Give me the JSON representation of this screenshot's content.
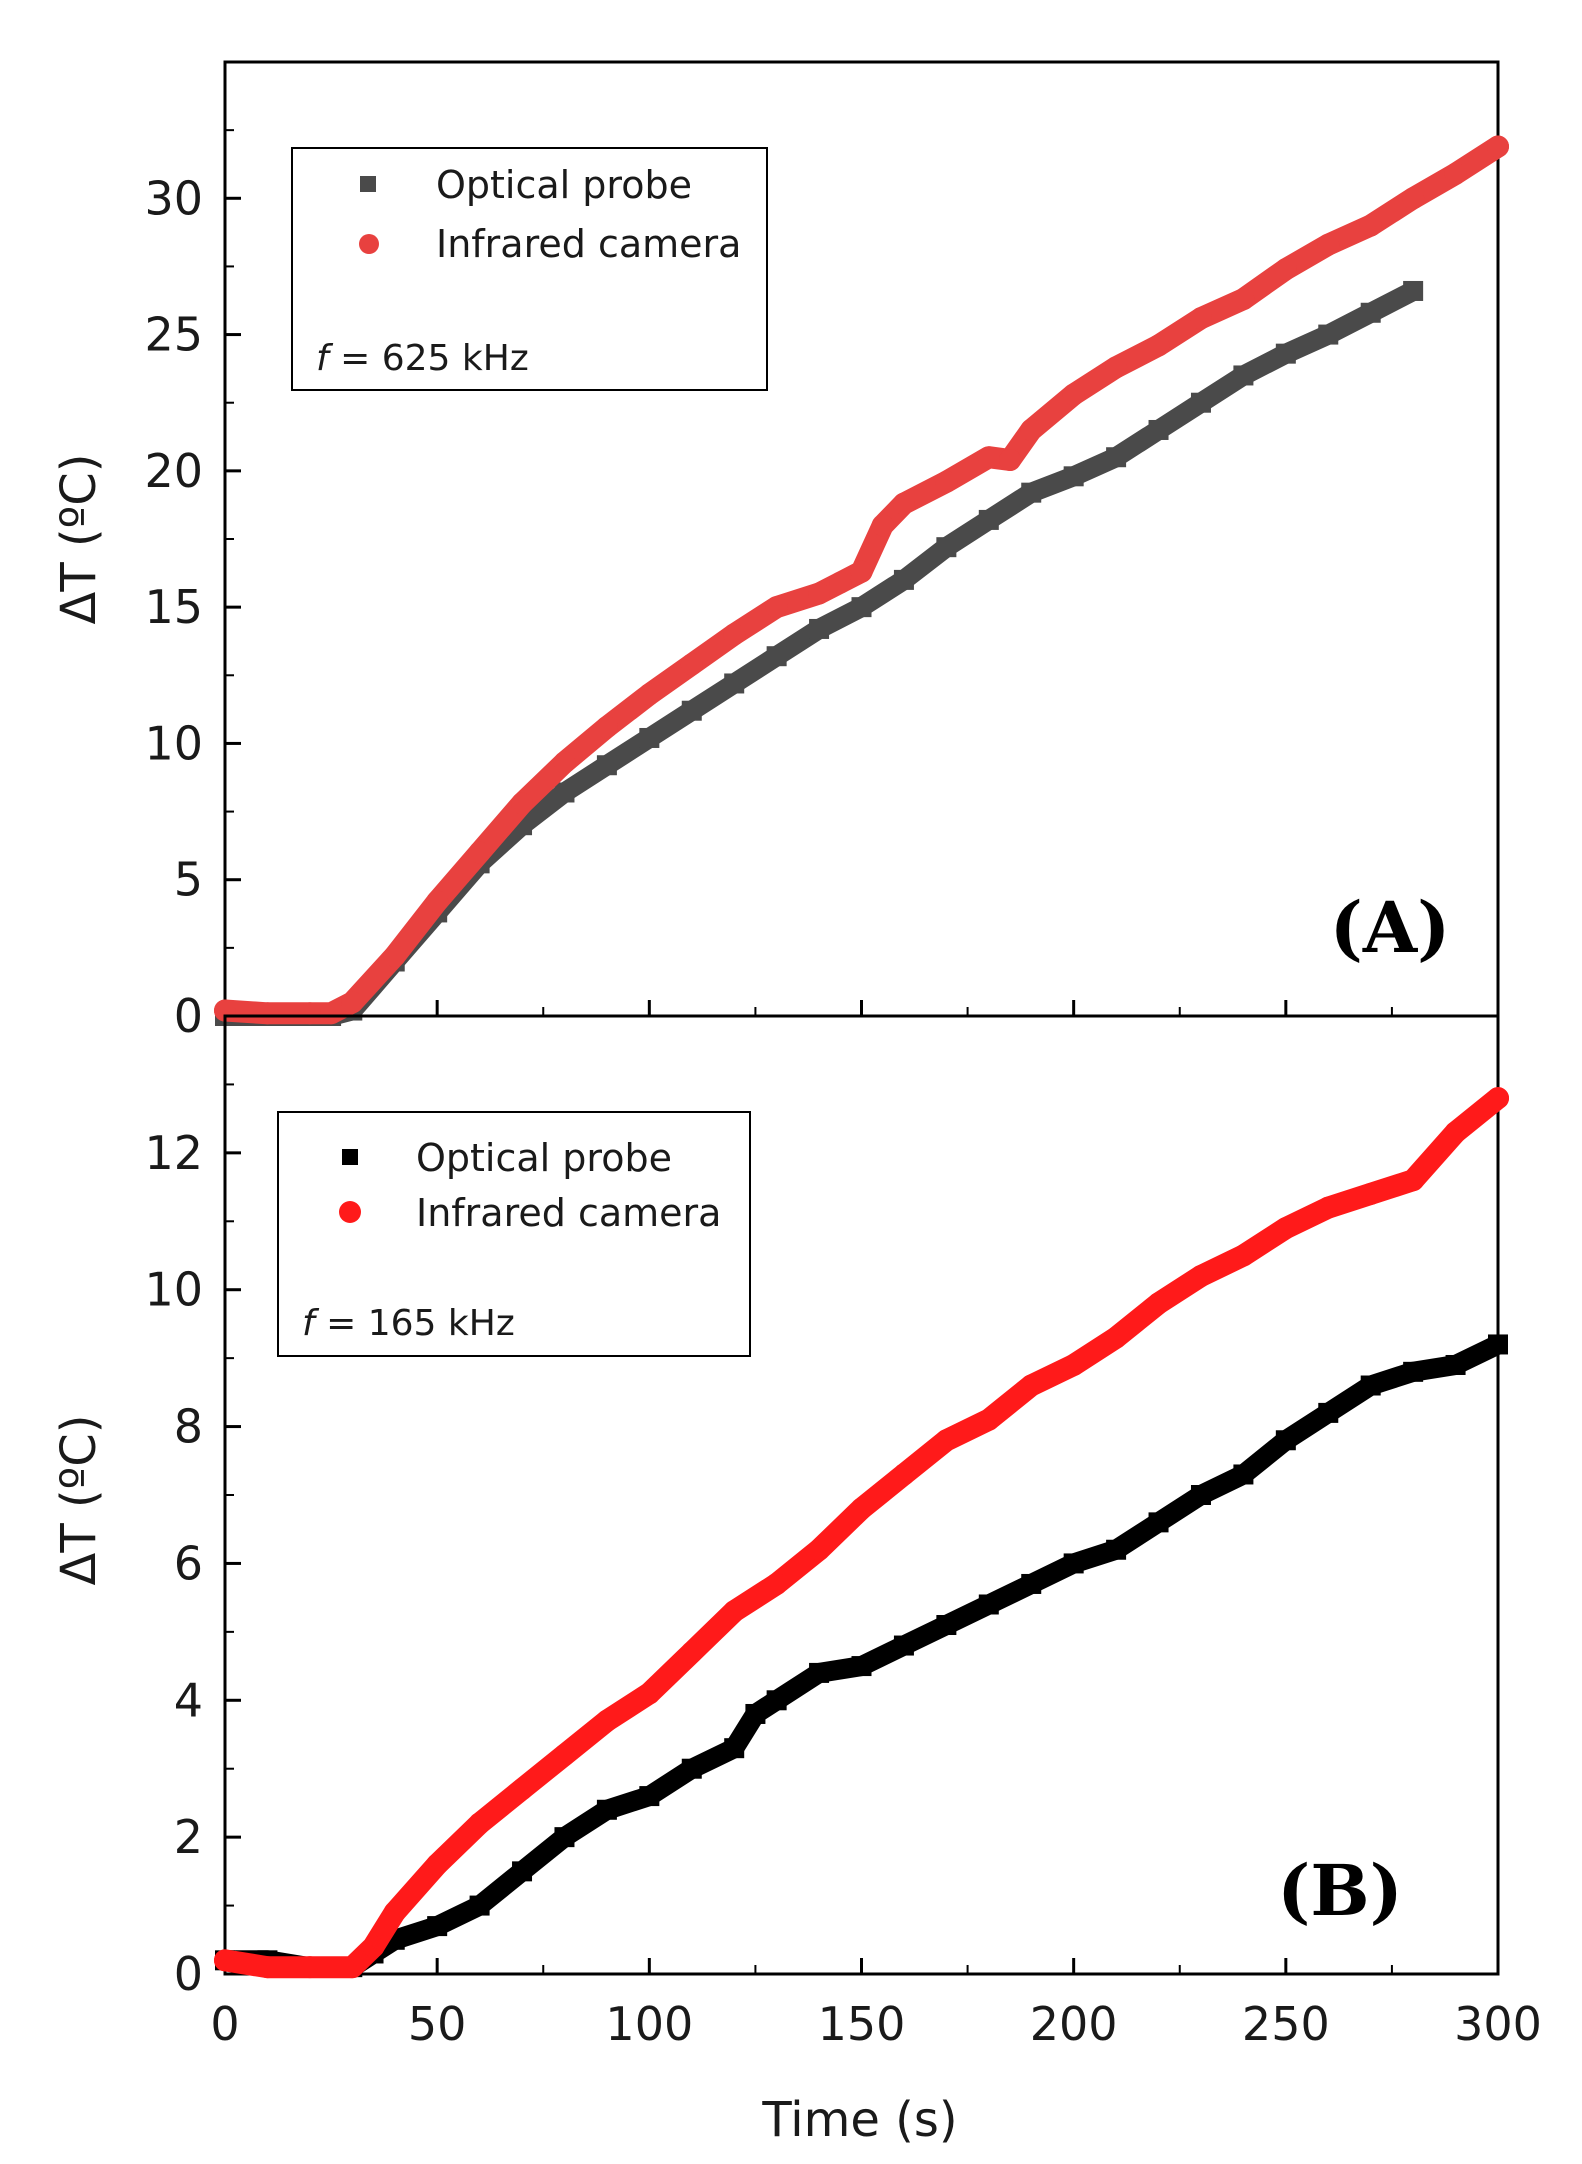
{
  "chart_data": [
    {
      "type": "scatter",
      "panel_label": "(A)",
      "xlabel": "Time (s)",
      "ylabel": "ΔT (ºC)",
      "xlim": [
        0,
        300
      ],
      "ylim": [
        0,
        35
      ],
      "x_ticks": [
        0,
        50,
        100,
        150,
        200,
        250,
        300
      ],
      "y_ticks": [
        0,
        5,
        10,
        15,
        20,
        25,
        30
      ],
      "legend": {
        "position": "top-left",
        "entries": [
          "Optical probe",
          "Infrared camera"
        ],
        "annotation_italic": "f",
        "annotation_rest": " = 625 kHz"
      },
      "series": [
        {
          "name": "Optical probe",
          "marker": "square",
          "color": "#4a4a4a",
          "x": [
            0,
            25,
            30,
            40,
            50,
            60,
            70,
            80,
            90,
            100,
            110,
            120,
            130,
            140,
            150,
            160,
            170,
            180,
            190,
            200,
            210,
            220,
            230,
            240,
            250,
            260,
            270,
            280
          ],
          "y": [
            0,
            0,
            0.2,
            2.0,
            3.8,
            5.6,
            7.0,
            8.2,
            9.2,
            10.2,
            11.2,
            12.2,
            13.2,
            14.2,
            15.0,
            16.0,
            17.2,
            18.2,
            19.2,
            19.8,
            20.5,
            21.5,
            22.5,
            23.5,
            24.3,
            25.0,
            25.8,
            26.6
          ]
        },
        {
          "name": "Infrared camera",
          "marker": "circle",
          "color": "#e8413f",
          "x": [
            0,
            10,
            20,
            25,
            30,
            40,
            50,
            60,
            70,
            80,
            90,
            100,
            110,
            120,
            130,
            140,
            145,
            150,
            155,
            160,
            170,
            180,
            185,
            190,
            200,
            210,
            220,
            230,
            240,
            250,
            260,
            270,
            280,
            290,
            300
          ],
          "y": [
            0.2,
            0.1,
            0.1,
            0.1,
            0.5,
            2.2,
            4.2,
            6.0,
            7.8,
            9.3,
            10.6,
            11.8,
            12.9,
            14.0,
            15.0,
            15.5,
            15.9,
            16.3,
            18.0,
            18.8,
            19.6,
            20.5,
            20.4,
            21.5,
            22.8,
            23.8,
            24.6,
            25.6,
            26.3,
            27.4,
            28.3,
            29.0,
            30.0,
            30.9,
            31.9
          ]
        }
      ]
    },
    {
      "type": "scatter",
      "panel_label": "(B)",
      "xlabel": "Time (s)",
      "ylabel": "ΔT (ºC)",
      "xlim": [
        0,
        300
      ],
      "ylim": [
        0,
        14
      ],
      "x_ticks": [
        0,
        50,
        100,
        150,
        200,
        250,
        300
      ],
      "y_ticks": [
        0,
        2,
        4,
        6,
        8,
        10,
        12
      ],
      "legend": {
        "position": "top-left",
        "entries": [
          "Optical probe",
          "Infrared camera"
        ],
        "annotation_italic": "f",
        "annotation_rest": " = 165 kHz"
      },
      "series": [
        {
          "name": "Optical probe",
          "marker": "square",
          "color": "#000000",
          "x": [
            0,
            10,
            20,
            30,
            35,
            40,
            50,
            60,
            70,
            80,
            90,
            100,
            110,
            120,
            125,
            130,
            140,
            150,
            160,
            170,
            180,
            190,
            200,
            210,
            220,
            230,
            240,
            250,
            260,
            270,
            280,
            290,
            300
          ],
          "y": [
            0.2,
            0.2,
            0.1,
            0.1,
            0.3,
            0.5,
            0.7,
            1.0,
            1.5,
            2.0,
            2.4,
            2.6,
            3.0,
            3.3,
            3.8,
            4.0,
            4.4,
            4.5,
            4.8,
            5.1,
            5.4,
            5.7,
            6.0,
            6.2,
            6.6,
            7.0,
            7.3,
            7.8,
            8.2,
            8.6,
            8.8,
            8.9,
            9.2
          ]
        },
        {
          "name": "Infrared camera",
          "marker": "circle",
          "color": "#ff1a1a",
          "x": [
            0,
            10,
            20,
            30,
            35,
            40,
            50,
            60,
            70,
            80,
            90,
            100,
            110,
            120,
            130,
            140,
            150,
            160,
            170,
            180,
            190,
            200,
            210,
            220,
            230,
            240,
            250,
            260,
            270,
            280,
            290,
            300
          ],
          "y": [
            0.2,
            0.1,
            0.1,
            0.1,
            0.4,
            0.9,
            1.6,
            2.2,
            2.7,
            3.2,
            3.7,
            4.1,
            4.7,
            5.3,
            5.7,
            6.2,
            6.8,
            7.3,
            7.8,
            8.1,
            8.6,
            8.9,
            9.3,
            9.8,
            10.2,
            10.5,
            10.9,
            11.2,
            11.4,
            11.6,
            12.3,
            12.8
          ]
        }
      ]
    }
  ]
}
